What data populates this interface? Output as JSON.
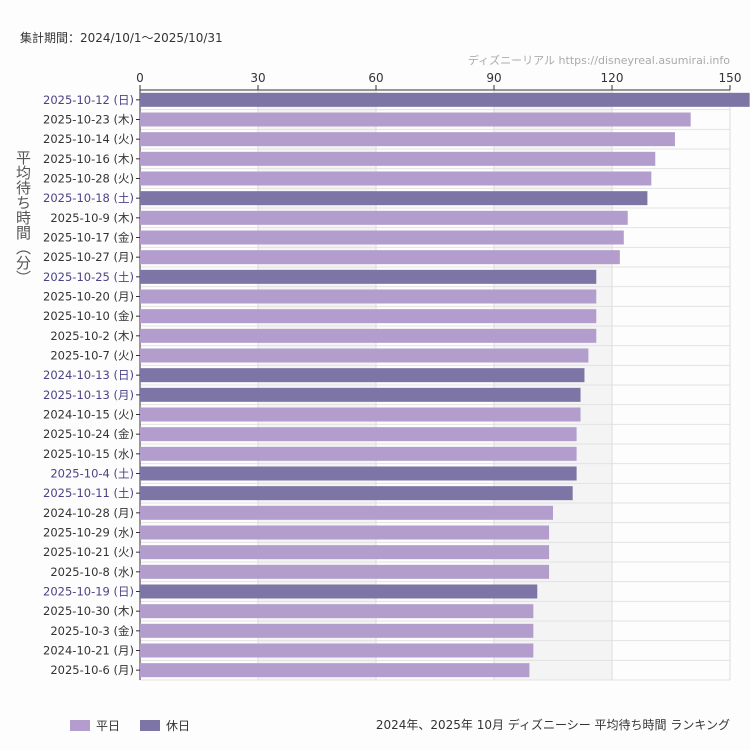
{
  "period": "集計期間：2024/10/1〜2025/10/31",
  "credit": "ディズニーリアル https://disneyreal.asumirai.info",
  "footer_title": "2024年、2025年 10月 ディズニーシー 平均待ち時間 ランキング",
  "colors": {
    "weekday": "#b39dcc",
    "holiday": "#7d75a5",
    "holiday_label": "#4b4387",
    "weekday_label": "#333333"
  },
  "chart_data": {
    "type": "bar",
    "orientation": "horizontal",
    "ylabel": "平均待ち時間（分）",
    "xlim": [
      0,
      150
    ],
    "xticks": [
      "0",
      "30",
      "60",
      "90",
      "120",
      "150"
    ],
    "grid": true,
    "legend": {
      "position": "bottom-left",
      "items": [
        {
          "name": "平日",
          "type": "weekday"
        },
        {
          "name": "休日",
          "type": "holiday"
        }
      ]
    },
    "categories": [
      "2025-10-12 (日)",
      "2025-10-23 (木)",
      "2025-10-14 (火)",
      "2025-10-16 (木)",
      "2025-10-28 (火)",
      "2025-10-18 (土)",
      "2025-10-9 (木)",
      "2025-10-17 (金)",
      "2025-10-27 (月)",
      "2025-10-25 (土)",
      "2025-10-20 (月)",
      "2025-10-10 (金)",
      "2025-10-2 (木)",
      "2025-10-7 (火)",
      "2024-10-13 (日)",
      "2025-10-13 (月)",
      "2024-10-15 (火)",
      "2025-10-24 (金)",
      "2025-10-15 (水)",
      "2025-10-4 (土)",
      "2025-10-11 (土)",
      "2024-10-28 (月)",
      "2025-10-29 (水)",
      "2025-10-21 (火)",
      "2025-10-8 (水)",
      "2025-10-19 (日)",
      "2025-10-30 (木)",
      "2025-10-3 (金)",
      "2024-10-21 (月)",
      "2025-10-6 (月)"
    ],
    "values": [
      155,
      140,
      136,
      131,
      130,
      129,
      124,
      123,
      122,
      116,
      116,
      116,
      116,
      114,
      113,
      112,
      112,
      111,
      111,
      111,
      110,
      105,
      104,
      104,
      104,
      101,
      100,
      100,
      100,
      99
    ],
    "holiday": [
      true,
      false,
      false,
      false,
      false,
      true,
      false,
      false,
      false,
      true,
      false,
      false,
      false,
      false,
      true,
      true,
      false,
      false,
      false,
      true,
      true,
      false,
      false,
      false,
      false,
      true,
      false,
      false,
      false,
      false
    ]
  }
}
